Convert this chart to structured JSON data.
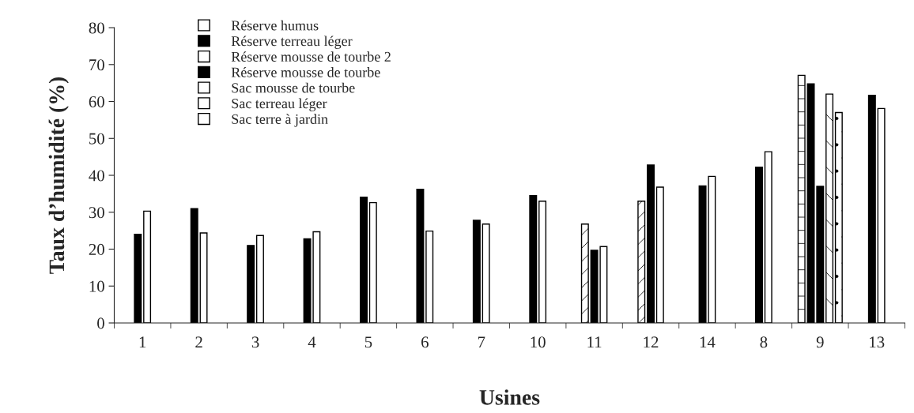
{
  "chart_data": {
    "type": "bar",
    "xlabel": "Usines",
    "ylabel": "Taux d’humidité (%)",
    "categories": [
      "1",
      "2",
      "3",
      "4",
      "5",
      "6",
      "7",
      "10",
      "11",
      "12",
      "14",
      "8",
      "9",
      "13"
    ],
    "series": [
      {
        "name": "Réserve humus",
        "color": "#ffffff",
        "values": [
          null,
          null,
          null,
          null,
          null,
          null,
          null,
          null,
          null,
          null,
          null,
          null,
          67.1,
          null
        ]
      },
      {
        "name": "Réserve terreau léger",
        "color": "#000000",
        "values": [
          null,
          null,
          null,
          null,
          null,
          null,
          null,
          null,
          null,
          null,
          null,
          null,
          64.8,
          null
        ]
      },
      {
        "name": "Réserve mousse de tourbe 2",
        "color": "#ffffff",
        "values": [
          null,
          null,
          null,
          null,
          null,
          null,
          null,
          null,
          26.8,
          33.0,
          null,
          null,
          null,
          null
        ]
      },
      {
        "name": "Réserve mousse de tourbe",
        "color": "#000000",
        "values": [
          24.0,
          31.0,
          21.0,
          22.8,
          34.1,
          36.2,
          27.8,
          34.5,
          19.7,
          42.8,
          37.1,
          42.2,
          37.0,
          61.7
        ]
      },
      {
        "name": "Sac mousse de tourbe",
        "color": "#ffffff",
        "values": [
          30.3,
          24.4,
          23.7,
          24.7,
          32.6,
          24.9,
          26.8,
          33.0,
          20.7,
          36.8,
          39.7,
          46.4,
          null,
          58.1
        ]
      },
      {
        "name": "Sac terreau léger",
        "color": "#ffffff",
        "values": [
          null,
          null,
          null,
          null,
          null,
          null,
          null,
          null,
          null,
          null,
          null,
          null,
          62.0,
          null
        ]
      },
      {
        "name": "Sac terre à jardin",
        "color": "#ffffff",
        "values": [
          null,
          null,
          null,
          null,
          null,
          null,
          null,
          null,
          null,
          null,
          null,
          null,
          57.0,
          null
        ]
      }
    ],
    "ylim": [
      0,
      80
    ],
    "yticks": [
      0,
      10,
      20,
      30,
      40,
      50,
      60,
      70,
      80
    ],
    "grid": false,
    "legend": "top"
  }
}
